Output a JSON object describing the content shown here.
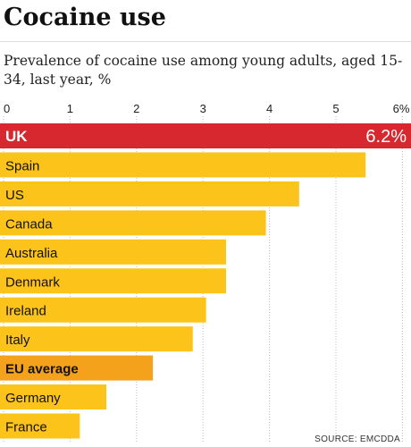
{
  "title": "Cocaine use",
  "subtitle": "Prevalence of cocaine use among young adults, aged 15-34, last year, %",
  "source": "SOURCE: EMCDDA",
  "colors": {
    "highlight": "#d7282f",
    "average": "#f4a11b",
    "default": "#fcc31a",
    "text": "#111111",
    "grid": "#bbbbbb"
  },
  "chart_data": {
    "type": "bar",
    "orientation": "horizontal",
    "categories": [
      "UK",
      "Spain",
      "US",
      "Canada",
      "Australia",
      "Denmark",
      "Ireland",
      "Italy",
      "EU average",
      "Germany",
      "France"
    ],
    "values": [
      6.2,
      5.5,
      4.5,
      4.0,
      3.4,
      3.4,
      3.1,
      2.9,
      2.3,
      1.6,
      1.2
    ],
    "highlight": [
      "UK"
    ],
    "average": [
      "EU average"
    ],
    "value_labels": {
      "UK": "6.2%"
    },
    "xlim": [
      0,
      6
    ],
    "ticks": [
      0,
      1,
      2,
      3,
      4,
      5,
      6
    ],
    "tick_labels": [
      "0",
      "1",
      "2",
      "3",
      "4",
      "5",
      "6%"
    ],
    "grid": true
  }
}
